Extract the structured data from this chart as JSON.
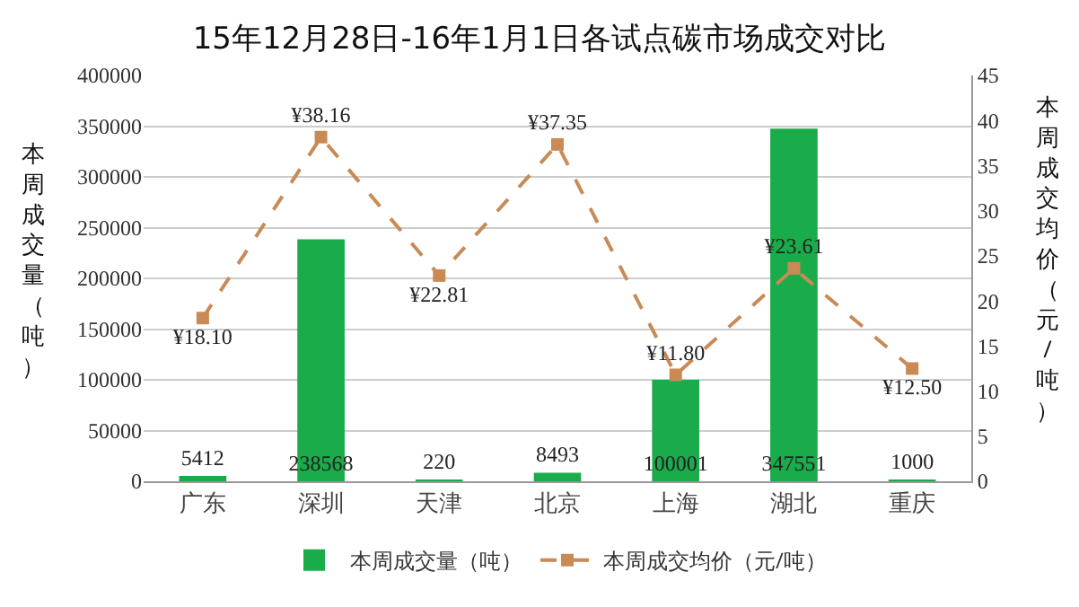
{
  "chart_data": {
    "type": "bar",
    "title": "15年12月28日-16年1月1日各试点碳市场成交对比",
    "categories": [
      "广东",
      "深圳",
      "天津",
      "北京",
      "上海",
      "湖北",
      "重庆"
    ],
    "series": [
      {
        "name": "本周成交量（吨）",
        "color": "#1aab4a",
        "values": [
          5412,
          238568,
          220,
          8493,
          100001,
          347551,
          1000
        ],
        "value_labels": [
          "5412",
          "238568",
          "220",
          "8493",
          "100001",
          "347551",
          "1000"
        ]
      },
      {
        "name": "本周成交均价（元/吨）",
        "type": "line",
        "axis": "y2",
        "color": "#c98a55",
        "marker": "square",
        "line_style": "dashed",
        "values": [
          18.1,
          38.16,
          22.81,
          37.35,
          11.8,
          23.61,
          12.5
        ],
        "value_labels": [
          "¥18.10",
          "¥38.16",
          "¥22.81",
          "¥37.35",
          "¥11.80",
          "¥23.61",
          "¥12.50"
        ]
      }
    ],
    "ylabel": "本周成交量（吨）",
    "y2label": "本周成交均价（元/吨）",
    "ylim": [
      0,
      400000
    ],
    "yticks": [
      0,
      50000,
      100000,
      150000,
      200000,
      250000,
      300000,
      350000,
      400000
    ],
    "y2lim": [
      0,
      45
    ],
    "y2ticks": [
      0,
      5,
      10,
      15,
      20,
      25,
      30,
      35,
      40,
      45
    ],
    "grid": "y",
    "legend": "bottom"
  }
}
